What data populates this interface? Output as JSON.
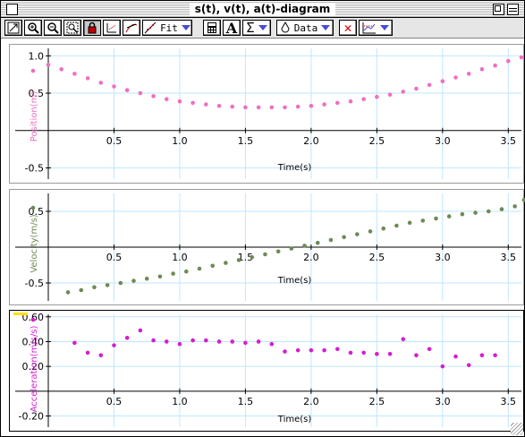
{
  "window": {
    "title": "s(t), v(t), a(t)-diagram"
  },
  "toolbar": {
    "fit_label": "Fit",
    "text_tool_label": "A",
    "stats_label": "Σ",
    "data_label": "Data",
    "delete_label": "✕"
  },
  "colors": {
    "position": "#f06ec2",
    "velocity": "#6e8a55",
    "acceleration": "#d41ed0",
    "grid": "#bfe6ff",
    "highlight": "#ffe000"
  },
  "chart_data": [
    {
      "type": "scatter",
      "title": "",
      "xlabel": "Time(s)",
      "ylabel": "Position(m)",
      "xlim": [
        0.0,
        3.6
      ],
      "ylim": [
        -0.65,
        1.1
      ],
      "xticks": [
        "0.5",
        "1.0",
        "1.5",
        "2.0",
        "2.5",
        "3.0",
        "3.5"
      ],
      "yticks": [
        "1.0",
        "0.5",
        "-0.5"
      ],
      "series": [
        {
          "values": [
            [
              0.0,
              0.88
            ],
            [
              0.1,
              0.82
            ],
            [
              0.2,
              0.76
            ],
            [
              0.3,
              0.7
            ],
            [
              0.4,
              0.64
            ],
            [
              0.5,
              0.59
            ],
            [
              0.6,
              0.54
            ],
            [
              0.7,
              0.5
            ],
            [
              0.8,
              0.46
            ],
            [
              0.9,
              0.42
            ],
            [
              1.0,
              0.39
            ],
            [
              1.1,
              0.37
            ],
            [
              1.2,
              0.35
            ],
            [
              1.3,
              0.33
            ],
            [
              1.4,
              0.32
            ],
            [
              1.5,
              0.31
            ],
            [
              1.6,
              0.31
            ],
            [
              1.7,
              0.31
            ],
            [
              1.8,
              0.31
            ],
            [
              1.9,
              0.32
            ],
            [
              2.0,
              0.33
            ],
            [
              2.1,
              0.35
            ],
            [
              2.2,
              0.37
            ],
            [
              2.3,
              0.39
            ],
            [
              2.4,
              0.42
            ],
            [
              2.5,
              0.45
            ],
            [
              2.6,
              0.48
            ],
            [
              2.7,
              0.52
            ],
            [
              2.8,
              0.56
            ],
            [
              2.9,
              0.61
            ],
            [
              3.0,
              0.66
            ],
            [
              3.1,
              0.71
            ],
            [
              3.2,
              0.76
            ],
            [
              3.3,
              0.82
            ],
            [
              3.4,
              0.87
            ],
            [
              3.5,
              0.93
            ],
            [
              3.6,
              0.98
            ]
          ]
        }
      ]
    },
    {
      "type": "scatter",
      "title": "",
      "xlabel": "Time(s)",
      "ylabel": "Velocity(m/s)",
      "xlim": [
        0.0,
        3.6
      ],
      "ylim": [
        -0.75,
        0.75
      ],
      "xticks": [
        "0.5",
        "1.0",
        "1.5",
        "2.0",
        "2.5",
        "3.0",
        "3.5"
      ],
      "yticks": [
        "0.5",
        "-0.5"
      ],
      "series": [
        {
          "values": [
            [
              0.15,
              -0.63
            ],
            [
              0.25,
              -0.6
            ],
            [
              0.35,
              -0.56
            ],
            [
              0.45,
              -0.53
            ],
            [
              0.55,
              -0.5
            ],
            [
              0.65,
              -0.47
            ],
            [
              0.75,
              -0.44
            ],
            [
              0.85,
              -0.41
            ],
            [
              0.95,
              -0.37
            ],
            [
              1.05,
              -0.34
            ],
            [
              1.15,
              -0.3
            ],
            [
              1.25,
              -0.26
            ],
            [
              1.35,
              -0.22
            ],
            [
              1.45,
              -0.18
            ],
            [
              1.55,
              -0.14
            ],
            [
              1.65,
              -0.1
            ],
            [
              1.75,
              -0.06
            ],
            [
              1.85,
              -0.02
            ],
            [
              1.95,
              0.02
            ],
            [
              2.05,
              0.06
            ],
            [
              2.15,
              0.1
            ],
            [
              2.25,
              0.14
            ],
            [
              2.35,
              0.18
            ],
            [
              2.45,
              0.22
            ],
            [
              2.55,
              0.26
            ],
            [
              2.65,
              0.3
            ],
            [
              2.75,
              0.34
            ],
            [
              2.85,
              0.37
            ],
            [
              2.95,
              0.4
            ],
            [
              3.05,
              0.43
            ],
            [
              3.15,
              0.46
            ],
            [
              3.25,
              0.48
            ],
            [
              3.35,
              0.5
            ],
            [
              3.45,
              0.53
            ],
            [
              3.55,
              0.57
            ],
            [
              3.62,
              0.66
            ]
          ]
        }
      ]
    },
    {
      "type": "scatter",
      "title": "",
      "xlabel": "Time(s)",
      "ylabel": "Acceleration(m/s/s)",
      "xlim": [
        0.0,
        3.6
      ],
      "ylim": [
        -0.29,
        0.62
      ],
      "xticks": [
        "0.5",
        "1.0",
        "1.5",
        "2.0",
        "2.5",
        "3.0",
        "3.5"
      ],
      "yticks": [
        "0.60",
        "0.40",
        "0.20",
        "-0.20"
      ],
      "series": [
        {
          "values": [
            [
              0.2,
              0.39
            ],
            [
              0.3,
              0.31
            ],
            [
              0.4,
              0.29
            ],
            [
              0.5,
              0.37
            ],
            [
              0.6,
              0.43
            ],
            [
              0.7,
              0.49
            ],
            [
              0.8,
              0.41
            ],
            [
              0.9,
              0.4
            ],
            [
              1.0,
              0.38
            ],
            [
              1.1,
              0.41
            ],
            [
              1.2,
              0.41
            ],
            [
              1.3,
              0.4
            ],
            [
              1.4,
              0.4
            ],
            [
              1.5,
              0.39
            ],
            [
              1.6,
              0.4
            ],
            [
              1.7,
              0.38
            ],
            [
              1.8,
              0.32
            ],
            [
              1.9,
              0.33
            ],
            [
              2.0,
              0.33
            ],
            [
              2.1,
              0.33
            ],
            [
              2.2,
              0.34
            ],
            [
              2.3,
              0.31
            ],
            [
              2.4,
              0.31
            ],
            [
              2.5,
              0.3
            ],
            [
              2.6,
              0.3
            ],
            [
              2.7,
              0.42
            ],
            [
              2.8,
              0.29
            ],
            [
              2.9,
              0.34
            ],
            [
              3.0,
              0.2
            ],
            [
              3.1,
              0.28
            ],
            [
              3.2,
              0.21
            ],
            [
              3.3,
              0.29
            ],
            [
              3.4,
              0.29
            ]
          ]
        }
      ]
    }
  ]
}
